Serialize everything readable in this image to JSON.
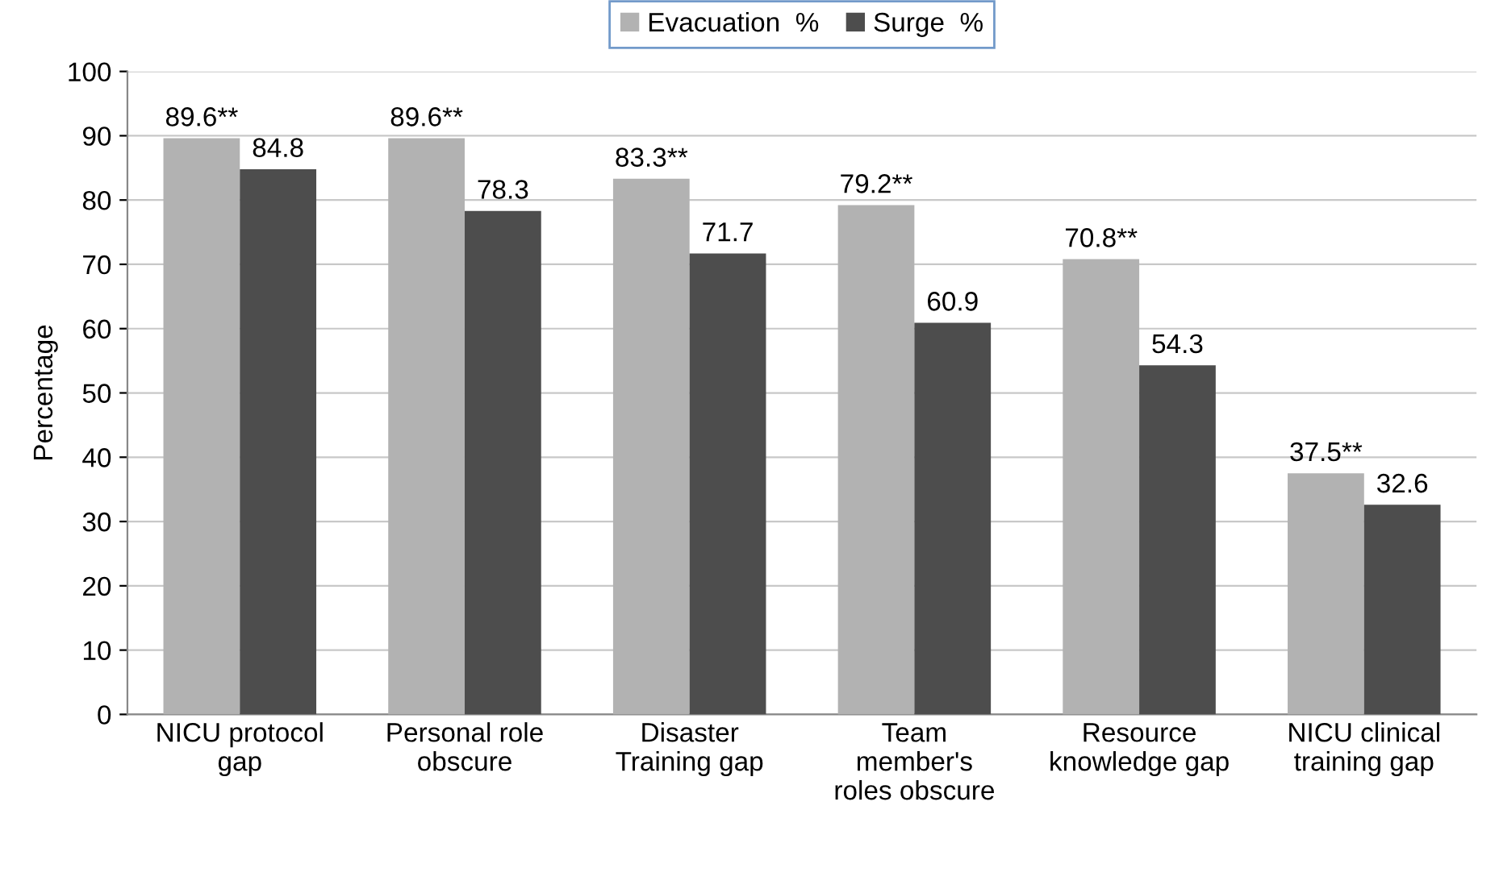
{
  "chart_data": {
    "type": "bar",
    "ylabel": "Percentage",
    "categories": [
      "NICU protocol\ngap",
      "Personal role\nobscure",
      "Disaster\nTraining gap",
      "Team\nmember's\nroles obscure",
      "Resource\nknowledge gap",
      "NICU clinical\ntraining gap"
    ],
    "series": [
      {
        "name": "Evacuation  %",
        "color": "#b2b2b2",
        "values": [
          89.6,
          89.6,
          83.3,
          79.2,
          70.8,
          37.5
        ],
        "value_labels": [
          "89.6**",
          "89.6**",
          "83.3**",
          "79.2**",
          "70.8**",
          "37.5**"
        ]
      },
      {
        "name": "Surge  %",
        "color": "#4d4d4d",
        "values": [
          84.8,
          78.3,
          71.7,
          60.9,
          54.3,
          32.6
        ],
        "value_labels": [
          "84.8",
          "78.3",
          "71.7",
          "60.9",
          "54.3",
          "32.6"
        ]
      }
    ],
    "ylim": [
      0,
      100
    ],
    "yticks": [
      0,
      10,
      20,
      30,
      40,
      50,
      60,
      70,
      80,
      90,
      100
    ],
    "grid": "y",
    "legend": "top"
  }
}
